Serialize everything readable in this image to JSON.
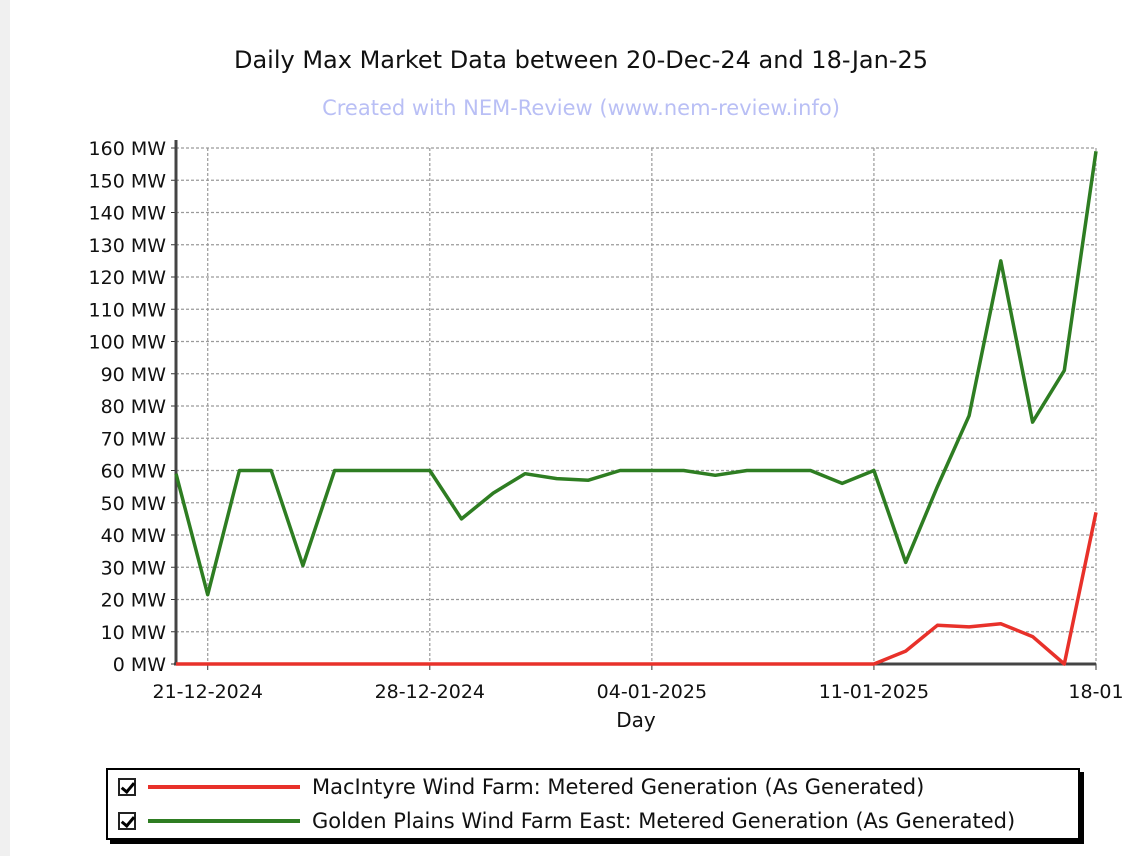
{
  "title": "Daily Max Market Data between 20-Dec-24 and 18-Jan-25",
  "subtitle": "Created with NEM-Review (www.nem-review.info)",
  "colors": {
    "macintyre": "#e8312a",
    "golden_plains": "#2e7d22",
    "grid": "#9a9a9a"
  },
  "legend": [
    {
      "label": "MacIntyre Wind Farm: Metered Generation (As Generated)",
      "checked": true,
      "color": "#e8312a"
    },
    {
      "label": "Golden Plains Wind Farm East: Metered Generation (As Generated)",
      "checked": true,
      "color": "#2e7d22"
    }
  ],
  "chart_data": {
    "type": "line",
    "title": "Daily Max Market Data between 20-Dec-24 and 18-Jan-25",
    "xlabel": "Day",
    "ylabel": "",
    "ylim": [
      0,
      160
    ],
    "y_ticks": [
      "0 MW",
      "10 MW",
      "20 MW",
      "30 MW",
      "40 MW",
      "50 MW",
      "60 MW",
      "70 MW",
      "80 MW",
      "90 MW",
      "100 MW",
      "110 MW",
      "120 MW",
      "130 MW",
      "140 MW",
      "150 MW",
      "160 MW"
    ],
    "x_tick_labels": [
      "21-12-2024",
      "28-12-2024",
      "04-01-2025",
      "11-01-2025",
      "18-01"
    ],
    "x_tick_days": [
      "2024-12-21",
      "2024-12-28",
      "2025-01-04",
      "2025-01-11",
      "2025-01-18"
    ],
    "grid": true,
    "legend_position": "bottom",
    "x": [
      "2024-12-20",
      "2024-12-21",
      "2024-12-22",
      "2024-12-23",
      "2024-12-24",
      "2024-12-25",
      "2024-12-26",
      "2024-12-27",
      "2024-12-28",
      "2024-12-29",
      "2024-12-30",
      "2024-12-31",
      "2025-01-01",
      "2025-01-02",
      "2025-01-03",
      "2025-01-04",
      "2025-01-05",
      "2025-01-06",
      "2025-01-07",
      "2025-01-08",
      "2025-01-09",
      "2025-01-10",
      "2025-01-11",
      "2025-01-12",
      "2025-01-13",
      "2025-01-14",
      "2025-01-15",
      "2025-01-16",
      "2025-01-17",
      "2025-01-18"
    ],
    "series": [
      {
        "name": "MacIntyre Wind Farm: Metered Generation (As Generated)",
        "values": [
          0,
          0,
          0,
          0,
          0,
          0,
          0,
          0,
          0,
          0,
          0,
          0,
          0,
          0,
          0,
          0,
          0,
          0,
          0,
          0,
          0,
          0,
          0,
          4,
          12,
          11.5,
          12.5,
          8.5,
          0,
          47
        ]
      },
      {
        "name": "Golden Plains Wind Farm East: Metered Generation (As Generated)",
        "values": [
          59,
          21.5,
          60,
          60,
          30.5,
          60,
          60,
          60,
          60,
          45,
          53,
          59,
          57.5,
          57,
          60,
          60,
          60,
          58.5,
          60,
          60,
          60,
          56,
          60,
          31.5,
          55,
          77,
          125,
          75,
          91,
          159
        ]
      }
    ]
  }
}
